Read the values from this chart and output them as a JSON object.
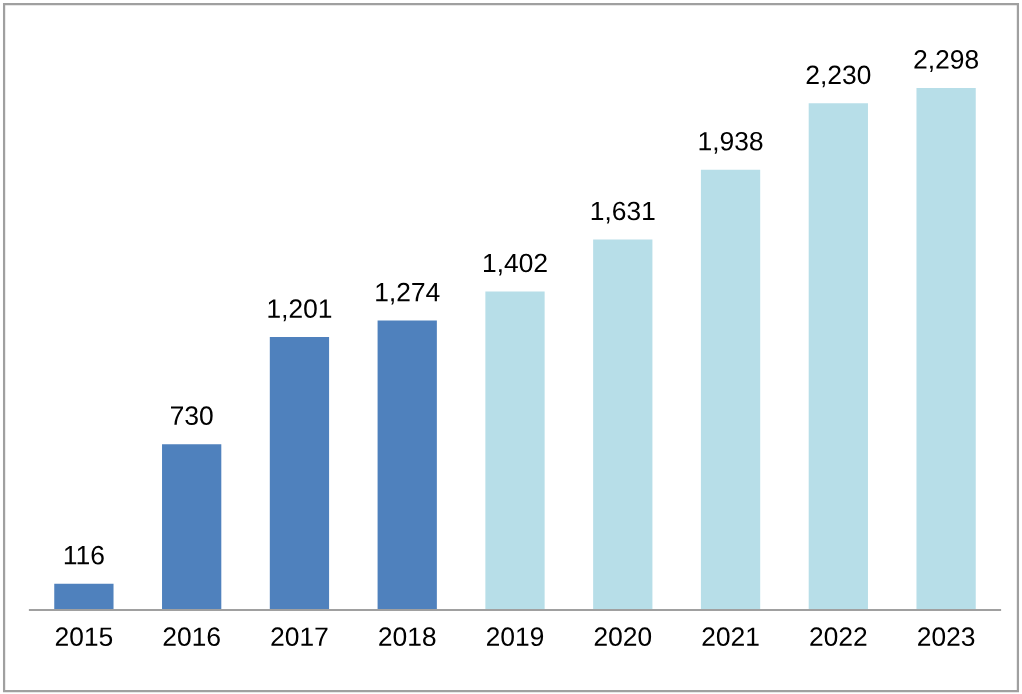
{
  "chart_data": {
    "type": "bar",
    "categories": [
      "2015",
      "2016",
      "2017",
      "2018",
      "2019",
      "2020",
      "2021",
      "2022",
      "2023"
    ],
    "values": [
      116,
      730,
      1201,
      1274,
      1402,
      1631,
      1938,
      2230,
      2298
    ],
    "colors": [
      "#4f81bd",
      "#4f81bd",
      "#4f81bd",
      "#4f81bd",
      "#b7dee8",
      "#b7dee8",
      "#b7dee8",
      "#b7dee8",
      "#b7dee8"
    ],
    "value_labels": [
      "116",
      "730",
      "1,201",
      "1,274",
      "1,402",
      "1,631",
      "1,938",
      "2,230",
      "2,298"
    ],
    "grid": false,
    "legend": false
  }
}
